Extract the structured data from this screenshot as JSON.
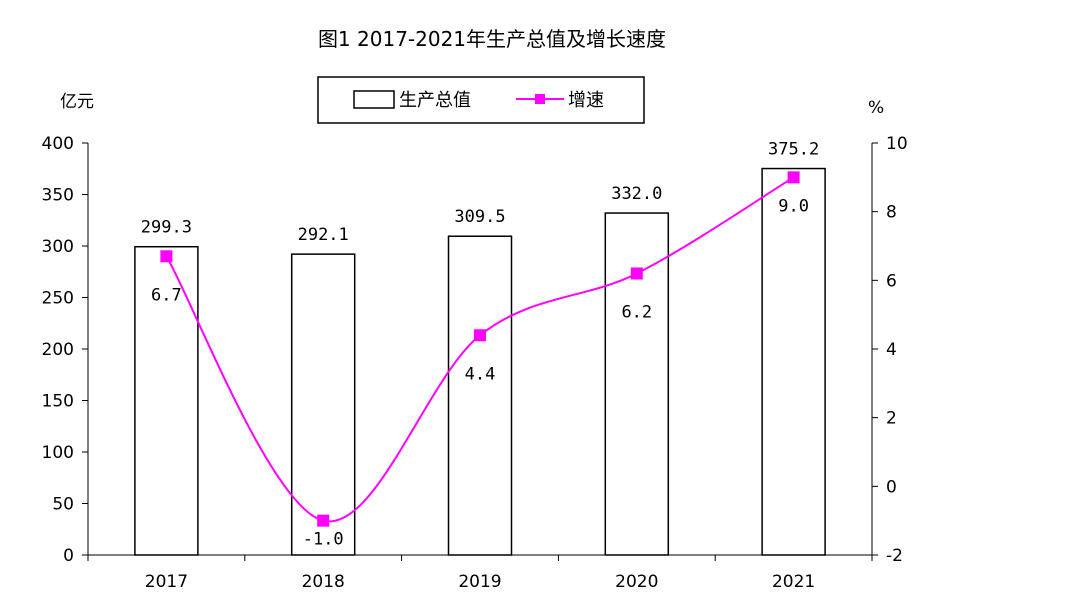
{
  "title": "图1 2017-2021年生产总值及增长速度",
  "left_unit": "亿元",
  "right_unit": "%",
  "legend": {
    "bar_label": "生产总值",
    "line_label": "增速"
  },
  "colors": {
    "bar_fill": "#ffffff",
    "bar_stroke": "#000000",
    "line": "#ff00ff",
    "marker": "#ff00ff"
  },
  "chart_data": {
    "type": "bar",
    "title": "图1 2017-2021年生产总值及增长速度",
    "categories": [
      "2017",
      "2018",
      "2019",
      "2020",
      "2021"
    ],
    "series": [
      {
        "name": "生产总值",
        "type": "bar",
        "axis": "left",
        "values": [
          299.3,
          292.1,
          309.5,
          332.0,
          375.2
        ],
        "labels": [
          "299.3",
          "292.1",
          "309.5",
          "332.0",
          "375.2"
        ]
      },
      {
        "name": "增速",
        "type": "line",
        "axis": "right",
        "values": [
          6.7,
          -1.0,
          4.4,
          6.2,
          9.0
        ],
        "labels": [
          "6.7",
          "-1.0",
          "4.4",
          "6.2",
          "9.0"
        ]
      }
    ],
    "left_axis": {
      "label": "亿元",
      "ylim": [
        0,
        400
      ],
      "ticks": [
        "0",
        "50",
        "100",
        "150",
        "200",
        "250",
        "300",
        "350",
        "400"
      ]
    },
    "right_axis": {
      "label": "%",
      "ylim": [
        -2,
        10
      ],
      "ticks": [
        "-2",
        "0",
        "2",
        "4",
        "6",
        "8",
        "10"
      ]
    },
    "grid": false,
    "legend_position": "top-center"
  }
}
